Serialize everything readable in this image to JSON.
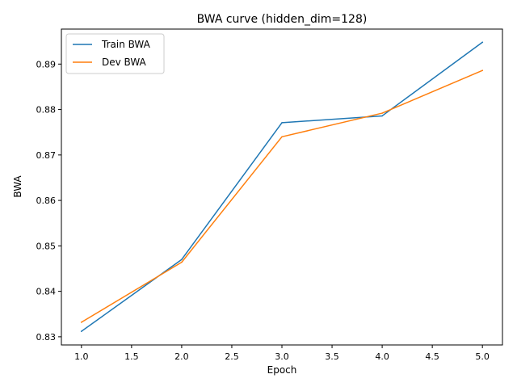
{
  "chart_data": {
    "type": "line",
    "title": "BWA curve (hidden_dim=128)",
    "xlabel": "Epoch",
    "ylabel": "BWA",
    "xlim": [
      0.8,
      5.2
    ],
    "ylim": [
      0.8282,
      0.8977
    ],
    "xticks": [
      1.0,
      1.5,
      2.0,
      2.5,
      3.0,
      3.5,
      4.0,
      4.5,
      5.0
    ],
    "xtick_labels": [
      "1.0",
      "1.5",
      "2.0",
      "2.5",
      "3.0",
      "3.5",
      "4.0",
      "4.5",
      "5.0"
    ],
    "yticks": [
      0.83,
      0.84,
      0.85,
      0.86,
      0.87,
      0.88,
      0.89
    ],
    "ytick_labels": [
      "0.83",
      "0.84",
      "0.85",
      "0.86",
      "0.87",
      "0.88",
      "0.89"
    ],
    "grid": false,
    "legend_position": "upper-left",
    "x": [
      1,
      2,
      3,
      4,
      5
    ],
    "series": [
      {
        "name": "Train BWA",
        "color": "#1f77b4",
        "values": [
          0.8312,
          0.847,
          0.8771,
          0.8786,
          0.8948
        ]
      },
      {
        "name": "Dev BWA",
        "color": "#ff7f0e",
        "values": [
          0.8332,
          0.8464,
          0.874,
          0.8792,
          0.8886
        ]
      }
    ]
  }
}
